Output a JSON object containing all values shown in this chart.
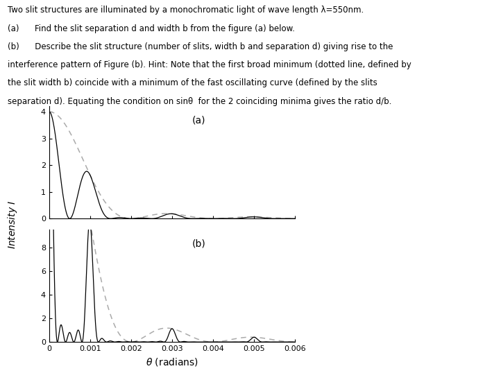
{
  "lambda_m": 5.5e-07,
  "theta_max": 0.006,
  "plot_a": {
    "N": 2,
    "d": 0.00055,
    "b": 0.000275,
    "ylim": [
      0,
      4.2
    ],
    "yticks": [
      0,
      1,
      2,
      3,
      4
    ],
    "label": "(a)"
  },
  "plot_b": {
    "N": 5,
    "d": 0.00055,
    "b": 0.000275,
    "ylim": [
      0,
      9.5
    ],
    "yticks": [
      0,
      2,
      4,
      6,
      8
    ],
    "label": "(b)"
  },
  "xlabel": "$\\theta$ (radians)",
  "ylabel": "Intensity $I$",
  "xticks": [
    0,
    0.001,
    0.002,
    0.003,
    0.004,
    0.005,
    0.006
  ],
  "xtick_labels": [
    "0",
    "0.001",
    "0.002",
    "0.003",
    "0.004",
    "0.005",
    "0.006"
  ],
  "line_color": "#000000",
  "dot_color": "#aaaaaa",
  "background": "#ffffff",
  "title_lines": [
    "Two slit structures are illuminated by a monochromatic light of wave length λ=550nm.",
    "(a)      Find the slit separation d and width b from the figure (a) below.",
    "(b)      Describe the slit structure (number of slits, width b and separation d) giving rise to the",
    "interference pattern of Figure (b). Hint: Note that the first broad minimum (dotted line, defined by",
    "the slit width b) coincide with a minimum of the fast oscillating curve (defined by the slits",
    "separation d). Equating the condition on sinθ  for the 2 coinciding minima gives the ratio d/b."
  ]
}
